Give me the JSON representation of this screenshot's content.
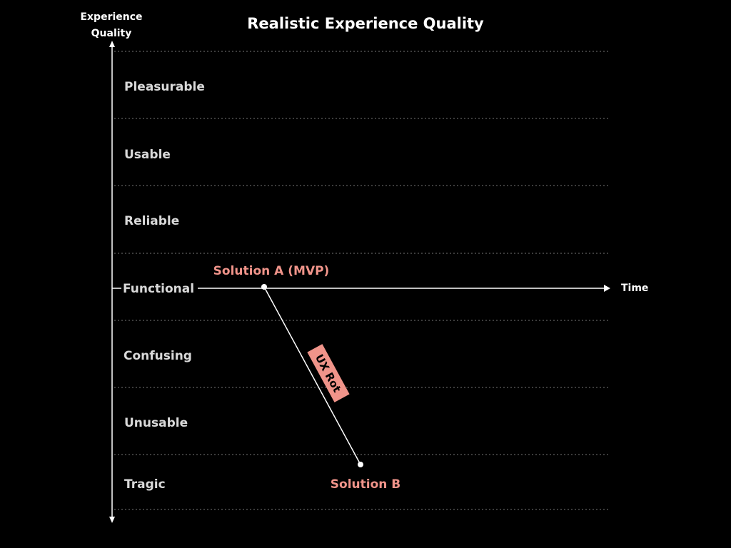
{
  "title": "Realistic Experience Quality",
  "y_axis_label": "Experience Quality",
  "x_axis_label": "Time",
  "levels": [
    "Pleasurable",
    "Usable",
    "Reliable",
    "Functional",
    "Confusing",
    "Unusable",
    "Tragic"
  ],
  "annotations": {
    "start": "Solution A (MVP)",
    "end": "Solution B",
    "decline": "UX Rot"
  }
}
